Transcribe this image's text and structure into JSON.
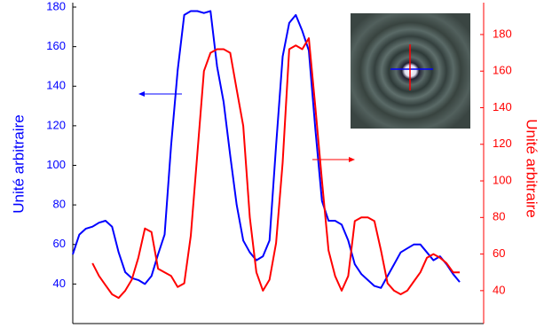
{
  "chart_data": {
    "type": "line",
    "ylabel": "Unité arbitraire",
    "y2label": "Unité arbitraire",
    "ylim": [
      20,
      180
    ],
    "yticks": [
      40,
      60,
      80,
      100,
      120,
      140,
      160,
      180
    ],
    "y2lim": [
      22,
      195
    ],
    "y2ticks": [
      40,
      60,
      80,
      100,
      120,
      140,
      160,
      180
    ],
    "series": [
      {
        "name": null,
        "color": "#0000ff",
        "axis": "y",
        "values": [
          55,
          65,
          68,
          69,
          71,
          72,
          69,
          56,
          46,
          43,
          42,
          40,
          44,
          55,
          65,
          110,
          148,
          176,
          178,
          178,
          177,
          178,
          150,
          132,
          105,
          80,
          62,
          56,
          52,
          54,
          62,
          110,
          155,
          172,
          176,
          168,
          158,
          118,
          82,
          72,
          72,
          70,
          62,
          50,
          45,
          42,
          39,
          38,
          44,
          50,
          56,
          58,
          60,
          60,
          56,
          52,
          54,
          50,
          45,
          41
        ]
      },
      {
        "name": null,
        "color": "#ff0000",
        "axis": "y2",
        "values": [
          null,
          null,
          null,
          55,
          48,
          43,
          38,
          36,
          40,
          46,
          58,
          74,
          72,
          52,
          50,
          48,
          42,
          44,
          70,
          115,
          160,
          170,
          172,
          172,
          170,
          150,
          130,
          80,
          50,
          40,
          46,
          66,
          110,
          172,
          174,
          172,
          178,
          140,
          100,
          62,
          48,
          40,
          48,
          78,
          80,
          80,
          78,
          62,
          44,
          40,
          38,
          40,
          45,
          50,
          58,
          60,
          58,
          55,
          50,
          50
        ]
      }
    ]
  }
}
